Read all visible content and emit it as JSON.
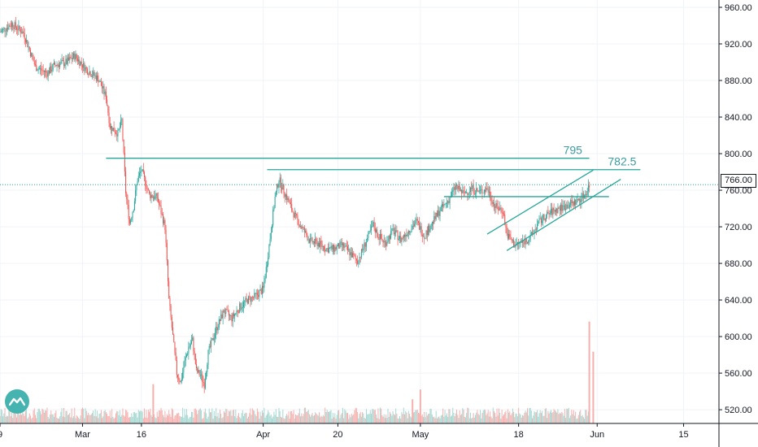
{
  "chart_data": {
    "type": "candlestick",
    "y_axis": {
      "ticks": [
        "960.00",
        "920.00",
        "880.00",
        "840.00",
        "800.00",
        "760.00",
        "720.00",
        "680.00",
        "640.00",
        "600.00",
        "560.00",
        "520.00"
      ],
      "tick_values": [
        960,
        920,
        880,
        840,
        800,
        760,
        720,
        680,
        640,
        600,
        560,
        520
      ],
      "ylim": [
        505,
        968
      ]
    },
    "x_axis": {
      "ticks": [
        {
          "label": "9",
          "day": 0
        },
        {
          "label": "Mar",
          "day": 21
        },
        {
          "label": "16",
          "day": 36
        },
        {
          "label": "Apr",
          "day": 67
        },
        {
          "label": "20",
          "day": 86
        },
        {
          "label": "May",
          "day": 107
        },
        {
          "label": "18",
          "day": 132
        },
        {
          "label": "Jun",
          "day": 152
        },
        {
          "label": "15",
          "day": 174
        }
      ],
      "xlim": [
        0,
        183
      ]
    },
    "last_price": {
      "label": "766.00",
      "value": 766
    },
    "horizontal_levels": [
      {
        "label": "795",
        "value": 795,
        "from_day": 27,
        "to_day": 150
      },
      {
        "label": "782.5",
        "value": 782.5,
        "from_day": 68,
        "to_day": 163
      },
      {
        "label": "",
        "value": 753,
        "from_day": 113,
        "to_day": 155
      }
    ],
    "trend_channel": [
      {
        "from_day": 124,
        "from_value": 712,
        "to_day": 151,
        "to_value": 782
      },
      {
        "from_day": 129,
        "from_value": 694,
        "to_day": 158,
        "to_value": 772
      }
    ],
    "price_path": [
      [
        0,
        933
      ],
      [
        3,
        942
      ],
      [
        6,
        932
      ],
      [
        9,
        895
      ],
      [
        12,
        888
      ],
      [
        14,
        897
      ],
      [
        17,
        900
      ],
      [
        19,
        907
      ],
      [
        22,
        892
      ],
      [
        25,
        882
      ],
      [
        27,
        862
      ],
      [
        28,
        830
      ],
      [
        30,
        822
      ],
      [
        31,
        836
      ],
      [
        32,
        758
      ],
      [
        33,
        724
      ],
      [
        34,
        742
      ],
      [
        35,
        772
      ],
      [
        36,
        782
      ],
      [
        38,
        755
      ],
      [
        40,
        752
      ],
      [
        42,
        720
      ],
      [
        43,
        640
      ],
      [
        44,
        600
      ],
      [
        45,
        560
      ],
      [
        46,
        550
      ],
      [
        47,
        572
      ],
      [
        48,
        588
      ],
      [
        49,
        596
      ],
      [
        50,
        562
      ],
      [
        51,
        558
      ],
      [
        52,
        548
      ],
      [
        53,
        582
      ],
      [
        55,
        608
      ],
      [
        57,
        628
      ],
      [
        59,
        620
      ],
      [
        61,
        632
      ],
      [
        63,
        640
      ],
      [
        65,
        644
      ],
      [
        67,
        652
      ],
      [
        68,
        682
      ],
      [
        70,
        752
      ],
      [
        71,
        772
      ],
      [
        72,
        762
      ],
      [
        73,
        752
      ],
      [
        75,
        732
      ],
      [
        77,
        718
      ],
      [
        79,
        704
      ],
      [
        81,
        702
      ],
      [
        83,
        696
      ],
      [
        85,
        696
      ],
      [
        87,
        700
      ],
      [
        89,
        692
      ],
      [
        91,
        682
      ],
      [
        93,
        702
      ],
      [
        95,
        722
      ],
      [
        96,
        712
      ],
      [
        98,
        702
      ],
      [
        100,
        716
      ],
      [
        102,
        706
      ],
      [
        104,
        716
      ],
      [
        106,
        726
      ],
      [
        108,
        710
      ],
      [
        110,
        724
      ],
      [
        112,
        738
      ],
      [
        114,
        748
      ],
      [
        116,
        764
      ],
      [
        118,
        756
      ],
      [
        120,
        762
      ],
      [
        122,
        758
      ],
      [
        124,
        762
      ],
      [
        126,
        742
      ],
      [
        128,
        738
      ],
      [
        129,
        712
      ],
      [
        131,
        700
      ],
      [
        133,
        703
      ],
      [
        135,
        708
      ],
      [
        137,
        724
      ],
      [
        139,
        732
      ],
      [
        141,
        738
      ],
      [
        143,
        741
      ],
      [
        145,
        745
      ],
      [
        147,
        748
      ],
      [
        149,
        756
      ],
      [
        150,
        766
      ]
    ],
    "volume": {
      "baseline": 15000,
      "spikes": [
        {
          "day": 39,
          "volume": 52000
        },
        {
          "day": 107,
          "volume": 45000
        },
        {
          "day": 105,
          "volume": 32000
        },
        {
          "day": 150,
          "volume": 135000
        },
        {
          "day": 151,
          "volume": 95000
        }
      ],
      "vmax": 140000
    },
    "colors": {
      "up": "#26a69a",
      "down": "#ef5350",
      "level": "#26a69a",
      "label": "#3c9ca1",
      "grid": "#f0f3fa",
      "axis": "#131722",
      "dotted": "#26a69a",
      "volume_up": "#a7d8d2",
      "volume_down": "#f5b0ae"
    }
  },
  "logo": {
    "icon": "tradingview-logo-icon"
  }
}
